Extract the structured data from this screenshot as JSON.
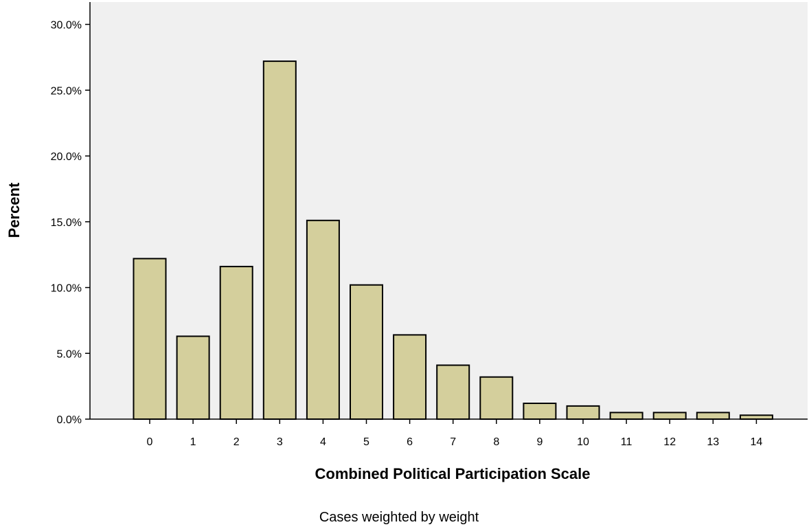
{
  "chart_data": {
    "type": "bar",
    "categories": [
      "0",
      "1",
      "2",
      "3",
      "4",
      "5",
      "6",
      "7",
      "8",
      "9",
      "10",
      "11",
      "12",
      "13",
      "14"
    ],
    "values": [
      12.2,
      6.3,
      11.6,
      27.2,
      15.1,
      10.2,
      6.4,
      4.1,
      3.2,
      1.2,
      1.0,
      0.5,
      0.5,
      0.5,
      0.3
    ],
    "xlabel": "Combined Political Participation Scale",
    "ylabel": "Percent",
    "ylim": [
      0,
      30
    ],
    "yticks": [
      "0.0%",
      "5.0%",
      "10.0%",
      "15.0%",
      "20.0%",
      "25.0%",
      "30.0%"
    ],
    "footnote": "Cases weighted by weight",
    "grid": false,
    "legend": "none",
    "colors": {
      "bar_fill": "#d4cf9c",
      "bar_stroke": "#000000",
      "plot_background": "#f0f0f0"
    }
  }
}
